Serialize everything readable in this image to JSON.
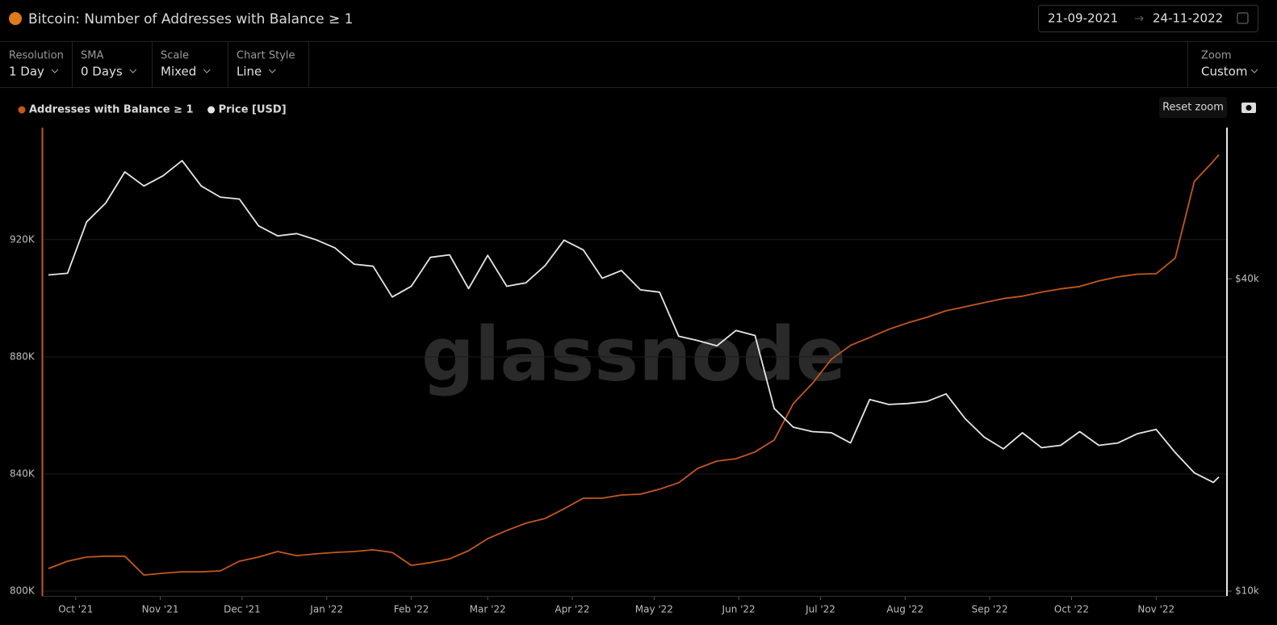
{
  "header": {
    "title": "Bitcoin: Number of Addresses with Balance ≥ 1",
    "date_from": "21-09-2021",
    "date_to": "24-11-2022"
  },
  "controls": [
    {
      "label": "Resolution",
      "value": "1 Day"
    },
    {
      "label": "SMA",
      "value": "0 Days"
    },
    {
      "label": "Scale",
      "value": "Mixed"
    },
    {
      "label": "Chart Style",
      "value": "Line"
    }
  ],
  "zoom": {
    "label": "Zoom",
    "value": "Custom"
  },
  "reset_zoom": "Reset zoom",
  "watermark": "glassnode",
  "chart_data": {
    "type": "line",
    "x": [
      "21-09-2021",
      "28-09-2021",
      "05-10-2021",
      "12-10-2021",
      "19-10-2021",
      "26-10-2021",
      "02-11-2021",
      "09-11-2021",
      "16-11-2021",
      "23-11-2021",
      "30-11-2021",
      "07-12-2021",
      "14-12-2021",
      "21-12-2021",
      "28-12-2021",
      "04-01-2022",
      "11-01-2022",
      "18-01-2022",
      "25-01-2022",
      "01-02-2022",
      "08-02-2022",
      "15-02-2022",
      "22-02-2022",
      "01-03-2022",
      "08-03-2022",
      "15-03-2022",
      "22-03-2022",
      "29-03-2022",
      "05-04-2022",
      "12-04-2022",
      "19-04-2022",
      "26-04-2022",
      "03-05-2022",
      "10-05-2022",
      "17-05-2022",
      "24-05-2022",
      "31-05-2022",
      "07-06-2022",
      "14-06-2022",
      "21-06-2022",
      "28-06-2022",
      "05-07-2022",
      "12-07-2022",
      "19-07-2022",
      "26-07-2022",
      "02-08-2022",
      "09-08-2022",
      "16-08-2022",
      "23-08-2022",
      "30-08-2022",
      "06-09-2022",
      "13-09-2022",
      "20-09-2022",
      "27-09-2022",
      "04-10-2022",
      "11-10-2022",
      "18-10-2022",
      "25-10-2022",
      "01-11-2022",
      "08-11-2022",
      "15-11-2022",
      "22-11-2022",
      "24-11-2022"
    ],
    "series": [
      {
        "name": "Addresses with Balance ≥ 1",
        "color": "#c4581c",
        "axis": "y",
        "values": [
          807700,
          810200,
          811600,
          811900,
          811900,
          805500,
          806100,
          806600,
          806600,
          806900,
          810200,
          811600,
          813500,
          812100,
          812700,
          813200,
          813500,
          814100,
          813200,
          808800,
          809700,
          811000,
          813800,
          817900,
          820700,
          823200,
          824800,
          828100,
          831700,
          831700,
          832800,
          833100,
          834800,
          837000,
          841900,
          844400,
          845200,
          847500,
          851600,
          864000,
          870900,
          879200,
          883900,
          886600,
          889400,
          891600,
          893500,
          895700,
          897100,
          898500,
          899900,
          900700,
          902100,
          903200,
          904000,
          905900,
          907300,
          908200,
          908400,
          913700,
          939900,
          946800,
          949000
        ]
      },
      {
        "name": "Price [USD]",
        "color": "#e6e6e6",
        "axis": "y2",
        "values": [
          40700,
          41000,
          51500,
          56000,
          64300,
          60400,
          63200,
          67600,
          60400,
          57500,
          57000,
          50600,
          48400,
          48900,
          47600,
          45900,
          42700,
          42300,
          36900,
          38700,
          44000,
          44500,
          38300,
          44400,
          38700,
          39300,
          42400,
          47500,
          45500,
          40100,
          41500,
          38100,
          37700,
          31000,
          30400,
          29700,
          31800,
          31100,
          22500,
          20700,
          20300,
          20200,
          19300,
          23400,
          22900,
          23000,
          23200,
          24000,
          21500,
          19800,
          18800,
          20200,
          18900,
          19100,
          20300,
          19100,
          19300,
          20100,
          20500,
          18500,
          16900,
          16200,
          16600
        ]
      }
    ],
    "xlim": [
      "21-09-2021",
      "24-11-2022"
    ],
    "xticks": [
      {
        "value": "01-10-2021",
        "label": "Oct '21"
      },
      {
        "value": "01-11-2021",
        "label": "Nov '21"
      },
      {
        "value": "01-12-2021",
        "label": "Dec '21"
      },
      {
        "value": "01-01-2022",
        "label": "Jan '22"
      },
      {
        "value": "01-02-2022",
        "label": "Feb '22"
      },
      {
        "value": "01-03-2022",
        "label": "Mar '22"
      },
      {
        "value": "01-04-2022",
        "label": "Apr '22"
      },
      {
        "value": "01-05-2022",
        "label": "May '22"
      },
      {
        "value": "01-06-2022",
        "label": "Jun '22"
      },
      {
        "value": "01-07-2022",
        "label": "Jul '22"
      },
      {
        "value": "01-08-2022",
        "label": "Aug '22"
      },
      {
        "value": "01-09-2022",
        "label": "Sep '22"
      },
      {
        "value": "01-10-2022",
        "label": "Oct '22"
      },
      {
        "value": "01-11-2022",
        "label": "Nov '22"
      }
    ],
    "ylim": [
      800000,
      958000
    ],
    "yticks": [
      {
        "value": 800000,
        "label": "800K"
      },
      {
        "value": 840000,
        "label": "840K"
      },
      {
        "value": 880000,
        "label": "880K"
      },
      {
        "value": 920000,
        "label": "920K"
      }
    ],
    "y2lim": [
      10000,
      78000
    ],
    "y2scale": "log",
    "y2ticks": [
      {
        "value": 10000,
        "label": "$10k"
      },
      {
        "value": 40000,
        "label": "$40k"
      }
    ],
    "grid": true,
    "legend": "top-left"
  }
}
